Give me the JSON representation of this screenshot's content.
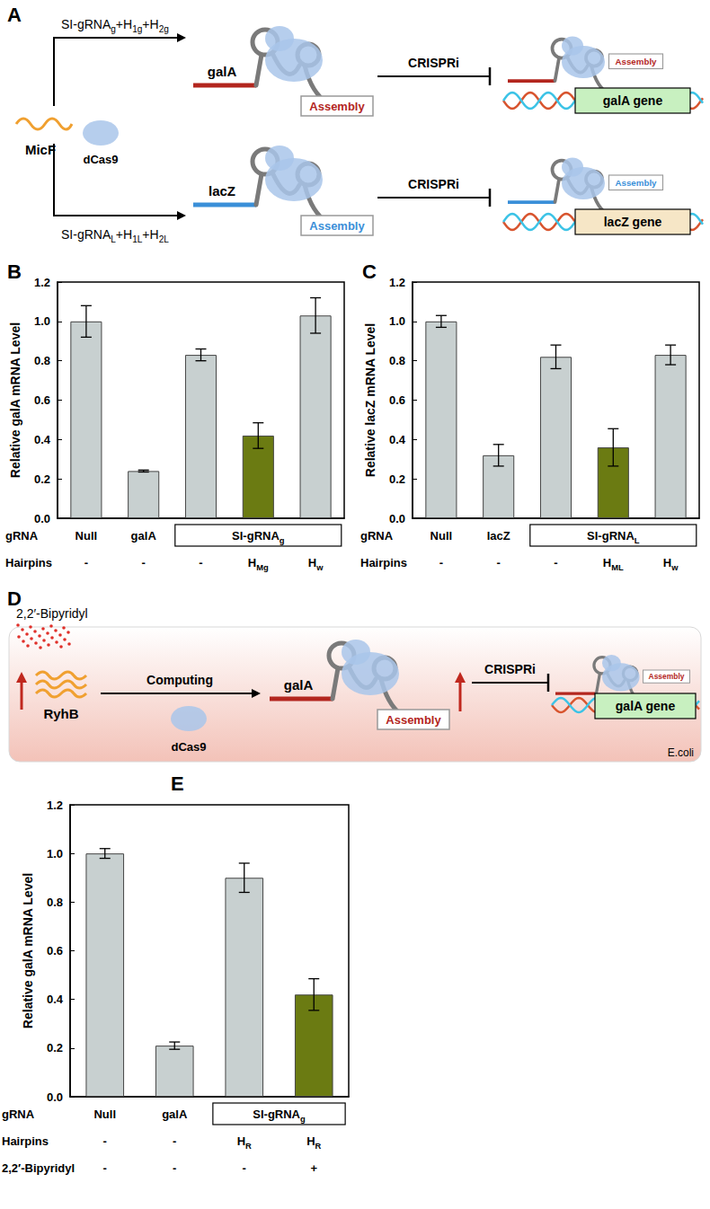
{
  "diagrams": {
    "A": {
      "panel": "A",
      "source": "MicF",
      "protein": "dCas9",
      "routes": [
        {
          "guide": [
            "SI-gRNA",
            {
              "sub": "g"
            },
            "+H",
            {
              "sub": "1g"
            },
            "+H",
            {
              "sub": "2g"
            }
          ],
          "target": "galA",
          "assembly": "Assembly",
          "action": "CRISPRi",
          "gene": "galA gene"
        },
        {
          "guide": [
            "SI-gRNA",
            {
              "sub": "L"
            },
            "+H",
            {
              "sub": "1L"
            },
            "+H",
            {
              "sub": "2L"
            }
          ],
          "target": "lacZ",
          "assembly": "Assembly",
          "action": "CRISPRi",
          "gene": "lacZ gene"
        }
      ]
    },
    "D": {
      "panel": "D",
      "inducer": "2,2′-Bipyridyl",
      "source": "RyhB",
      "process": "Computing",
      "protein": "dCas9",
      "target": "galA",
      "assembly": "Assembly",
      "action": "CRISPRi",
      "gene": "galA gene",
      "cell": "E.coli"
    }
  },
  "chart_data": [
    {
      "type": "bar",
      "panel": "B",
      "y_label": "Relative galA mRNA Level",
      "categories": [
        null,
        null,
        null,
        null,
        null
      ],
      "values": [
        1.0,
        0.24,
        0.83,
        0.42,
        1.03
      ],
      "errors": [
        0.08,
        0.005,
        0.03,
        0.065,
        0.09
      ],
      "colors": [
        "#c8d0d0",
        "#c8d0d0",
        "#c8d0d0",
        "#6b7b12",
        "#c8d0d0"
      ],
      "ylim": [
        0,
        1.2
      ],
      "yticks": [
        {
          "value": 0,
          "label": "0.0"
        },
        0.2,
        0.4,
        0.6,
        0.8,
        {
          "value": 1,
          "label": "1.0"
        },
        1.2
      ],
      "grid": false,
      "tick_labels": "y",
      "condition_rows": [
        {
          "label": "gRNA",
          "cells": [
            "Null",
            "galA",
            {
              "text": [
                "SI-gRNA",
                {
                  "sub": "g"
                }
              ],
              "span": 3
            }
          ]
        },
        {
          "label": "Hairpins",
          "cells": [
            "-",
            "-",
            "-",
            [
              "H",
              {
                "sub": "Mg"
              }
            ],
            [
              "H",
              {
                "sub": "w"
              }
            ]
          ]
        }
      ]
    },
    {
      "type": "bar",
      "panel": "C",
      "y_label": "Relative lacZ mRNA Level",
      "categories": [
        null,
        null,
        null,
        null,
        null
      ],
      "values": [
        1.0,
        0.32,
        0.82,
        0.36,
        0.83
      ],
      "errors": [
        0.03,
        0.055,
        0.06,
        0.095,
        0.05
      ],
      "colors": [
        "#c8d0d0",
        "#c8d0d0",
        "#c8d0d0",
        "#6b7b12",
        "#c8d0d0"
      ],
      "ylim": [
        0,
        1.2
      ],
      "yticks": [
        {
          "value": 0,
          "label": "0.0"
        },
        0.2,
        0.4,
        0.6,
        0.8,
        {
          "value": 1,
          "label": "1.0"
        },
        1.2
      ],
      "grid": false,
      "tick_labels": "y",
      "condition_rows": [
        {
          "label": "gRNA",
          "cells": [
            "Null",
            "lacZ",
            {
              "text": [
                "SI-gRNA",
                {
                  "sub": "L"
                }
              ],
              "span": 3
            }
          ]
        },
        {
          "label": "Hairpins",
          "cells": [
            "-",
            "-",
            "-",
            [
              "H",
              {
                "sub": "ML"
              }
            ],
            [
              "H",
              {
                "sub": "w"
              }
            ]
          ]
        }
      ]
    },
    {
      "type": "bar",
      "panel": "E",
      "y_label": "Relative galA mRNA Level",
      "categories": [
        null,
        null,
        null,
        null
      ],
      "values": [
        1.0,
        0.21,
        0.9,
        0.42
      ],
      "errors": [
        0.02,
        0.015,
        0.06,
        0.065
      ],
      "colors": [
        "#c8d0d0",
        "#c8d0d0",
        "#c8d0d0",
        "#6b7b12"
      ],
      "ylim": [
        0,
        1.2
      ],
      "yticks": [
        {
          "value": 0,
          "label": "0.0"
        },
        0.2,
        0.4,
        0.6,
        0.8,
        {
          "value": 1,
          "label": "1.0"
        },
        1.2
      ],
      "grid": false,
      "tick_labels": "y",
      "condition_rows": [
        {
          "label": "gRNA",
          "cells": [
            "Null",
            "galA",
            {
              "text": [
                "SI-gRNA",
                {
                  "sub": "g"
                }
              ],
              "span": 2
            }
          ]
        },
        {
          "label": "Hairpins",
          "cells": [
            "-",
            "-",
            [
              "H",
              {
                "sub": "R"
              }
            ],
            [
              "H",
              {
                "sub": "R"
              }
            ]
          ]
        },
        {
          "label": "2,2′-Bipyridyl",
          "cells": [
            "-",
            "-",
            "-",
            "+"
          ]
        }
      ]
    }
  ]
}
